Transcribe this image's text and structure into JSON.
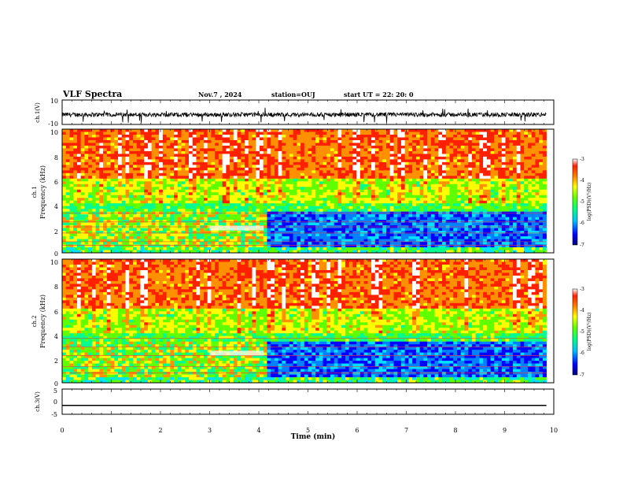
{
  "header": {
    "title": "VLF Spectra",
    "date": "Nov.7  , 2024",
    "station": "station=OUJ",
    "start_ut": "start  UT  =   22: 20: 0"
  },
  "colors": {
    "colormap": [
      "#00007a",
      "#0000ff",
      "#0080ff",
      "#00e0ff",
      "#00ff90",
      "#60ff00",
      "#ffff00",
      "#ff9000",
      "#ff2000",
      "#ffffff"
    ]
  },
  "chart_data": [
    {
      "type": "line",
      "name_label": "ch.1(V)",
      "ylim": [
        -10,
        10
      ],
      "yticks": [
        "10",
        "-10"
      ],
      "description_values": "waveform fluctuating around about -2 V with sharp negative spikes",
      "baseline": -2,
      "x_range": [
        0,
        10
      ]
    },
    {
      "type": "heatmap",
      "ylabel_channel": "ch.1",
      "ylabel": "Frequency  (kHz)",
      "ylim": [
        0,
        10
      ],
      "yticks": [
        "0",
        "2",
        "4",
        "6",
        "8",
        "10"
      ],
      "x_range": [
        0,
        10
      ],
      "colorbar": {
        "label": "log(PSD)(V²/Hz)",
        "range": [
          -7,
          -3
        ],
        "ticks": [
          "-3",
          "-4",
          "-5",
          "-6",
          "-7"
        ]
      },
      "features": [
        {
          "x_range": [
            0,
            4.1
          ],
          "band_khz": [
            0,
            3.5
          ],
          "note": "banded emission to 3.5 kHz"
        },
        {
          "x_range": [
            4.1,
            9.85
          ],
          "band_khz": [
            0,
            3.2
          ],
          "note": "low-power (blue) band"
        }
      ]
    },
    {
      "type": "heatmap",
      "ylabel_channel": "ch.2",
      "ylabel": "Frequency  (kHz)",
      "ylim": [
        0,
        10
      ],
      "yticks": [
        "0",
        "2",
        "4",
        "6",
        "8",
        "10"
      ],
      "x_range": [
        0,
        10
      ],
      "colorbar": {
        "label": "log(PSD)(V²/Hz)",
        "range": [
          -7,
          -3
        ],
        "ticks": [
          "-3",
          "-4",
          "-5",
          "-6",
          "-7"
        ]
      }
    },
    {
      "type": "line",
      "name_label": "ch.3(V)",
      "ylim": [
        -5,
        5
      ],
      "yticks": [
        "5",
        "0",
        "-5"
      ],
      "values_constant": -1.5,
      "x_range": [
        0,
        9.85
      ],
      "xlabel": "Time  (min)",
      "xticks": [
        "0",
        "1",
        "2",
        "3",
        "4",
        "5",
        "6",
        "7",
        "8",
        "9",
        "10"
      ]
    }
  ]
}
